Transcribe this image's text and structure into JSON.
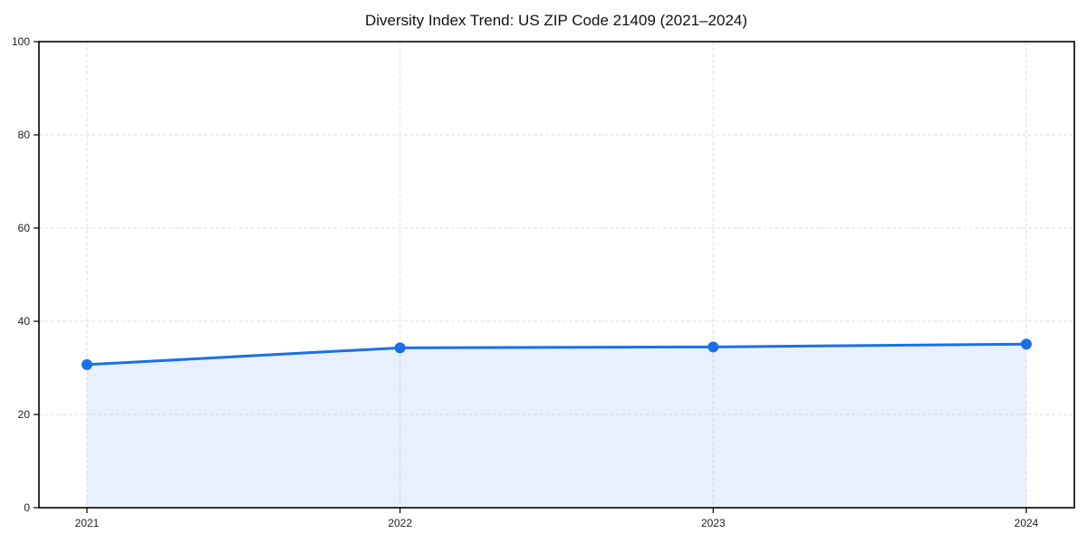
{
  "chart": {
    "title": "Diversity Index Trend: US ZIP Code 21409 (2021–2024)"
  },
  "chart_data": {
    "type": "line",
    "title": "Diversity Index Trend: US ZIP Code 21409 (2021–2024)",
    "x": [
      "2021",
      "2022",
      "2023",
      "2024"
    ],
    "series": [
      {
        "name": "Diversity Index",
        "values": [
          30.7,
          34.3,
          34.5,
          35.1
        ]
      }
    ],
    "xlabel": "",
    "ylabel": "",
    "ylim": [
      0,
      100
    ],
    "yticks": [
      0,
      20,
      40,
      60,
      80,
      100
    ],
    "grid": "dashed-both-axes",
    "legend": "none",
    "area_fill": true,
    "colors": {
      "line": "#1a6fe8",
      "marker": "#1a6fe8",
      "area_fill": "rgba(26, 111, 232, 0.10)",
      "grid": "#dfdfdf",
      "spine": "#000000",
      "tick_label": "#1f1f1f",
      "background": "#ffffff"
    }
  }
}
